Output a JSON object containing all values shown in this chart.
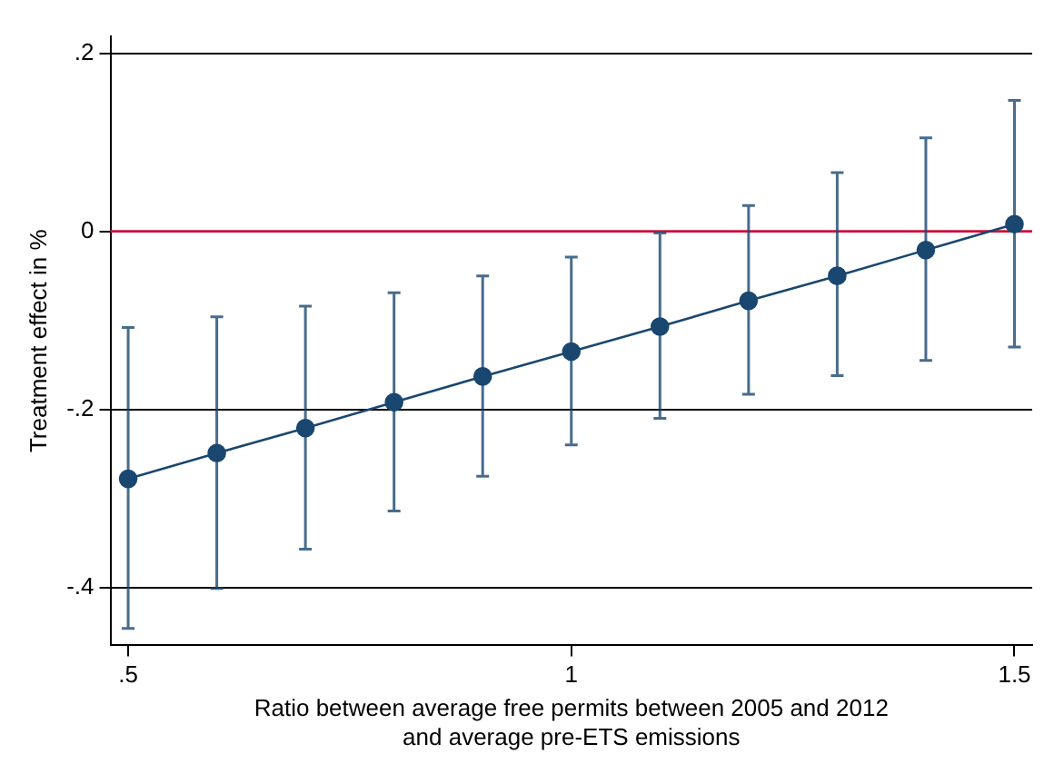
{
  "chart_data": {
    "type": "line",
    "xlabel": "Ratio between average free permits between 2005 and 2012\nand average pre-ETS emissions",
    "ylabel": "Treatment effect in %",
    "x": [
      0.5,
      0.6,
      0.7,
      0.8,
      0.9,
      1.0,
      1.1,
      1.2,
      1.3,
      1.4,
      1.5
    ],
    "series": [
      {
        "color": "#1a476f",
        "values": [
          -0.278,
          -0.249,
          -0.221,
          -0.192,
          -0.163,
          -0.135,
          -0.107,
          -0.078,
          -0.05,
          -0.021,
          0.008
        ],
        "errors": [
          [
            -0.446,
            -0.108
          ],
          [
            -0.401,
            -0.096
          ],
          [
            -0.357,
            -0.084
          ],
          [
            -0.314,
            -0.069
          ],
          [
            -0.275,
            -0.05
          ],
          [
            -0.24,
            -0.029
          ],
          [
            -0.21,
            -0.002
          ],
          [
            -0.183,
            0.029
          ],
          [
            -0.162,
            0.066
          ],
          [
            -0.145,
            0.105
          ],
          [
            -0.13,
            0.147
          ]
        ]
      }
    ],
    "xlim": [
      0.48,
      1.52
    ],
    "xticks": [
      {
        "value": 0.5,
        "label": ".5"
      },
      1,
      1.5
    ],
    "ylim": [
      -0.465,
      0.219
    ],
    "yticks": [
      {
        "value": 0.2,
        "label": ".2"
      },
      0,
      {
        "value": -0.2,
        "label": "-.2"
      },
      {
        "value": -0.4,
        "label": "-.4"
      }
    ],
    "ref_lines": [
      {
        "axis": "y",
        "value": 0,
        "color": "#d0103a"
      }
    ],
    "grid": "y",
    "marker": "circle",
    "line_style": "solid",
    "legend": false
  }
}
